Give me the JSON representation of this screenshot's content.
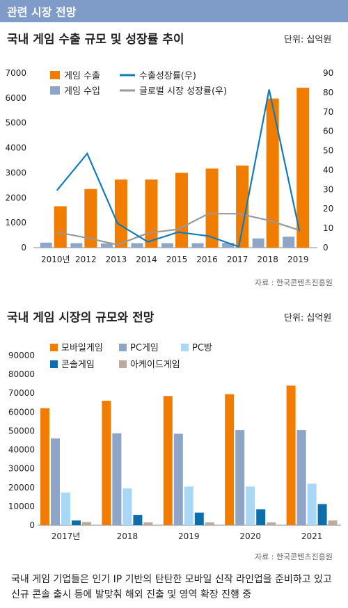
{
  "header": {
    "title": "관련 시장 전망"
  },
  "chart_data": [
    {
      "type": "bar",
      "title": "국내 게임 수출 규모 및 성장률 추이",
      "unit": "단위: 십억원",
      "source": "자료 : 한국콘텐츠진흥원",
      "categories": [
        "2010년",
        "2012",
        "2013",
        "2014",
        "2015",
        "2016",
        "2017",
        "2018",
        "2019"
      ],
      "ylim": [
        0,
        7000
      ],
      "yticks": [
        "7000",
        "6000",
        "5000",
        "4000",
        "3000",
        "2000",
        "1000",
        "0"
      ],
      "y2lim": [
        0,
        90
      ],
      "y2ticks": [
        "90",
        "80",
        "70",
        "60",
        "50",
        "40",
        "30",
        "20",
        "10",
        "0"
      ],
      "series": [
        {
          "name": "게임 수출",
          "kind": "bar",
          "axis": "left",
          "color": "#f07d00",
          "values": [
            1660,
            2350,
            2730,
            2730,
            3000,
            3170,
            3290,
            5980,
            6410
          ]
        },
        {
          "name": "게임 수입",
          "kind": "bar",
          "axis": "left",
          "color": "#8ea5c7",
          "values": [
            200,
            180,
            170,
            180,
            180,
            180,
            190,
            370,
            440
          ]
        },
        {
          "name": "수출성장률(우)",
          "kind": "line",
          "axis": "right",
          "color": "#0e7bbf",
          "values": [
            29.5,
            48.5,
            12.5,
            3.0,
            8.0,
            6.0,
            0.5,
            81.5,
            8.5
          ]
        },
        {
          "name": "글로벌 시장 성장률(우)",
          "kind": "line",
          "axis": "right",
          "color": "#999999",
          "values": [
            8.0,
            5.0,
            1.5,
            7.5,
            9.5,
            17.5,
            17.5,
            14.0,
            9.0
          ]
        }
      ],
      "legend_position": "top-left"
    },
    {
      "type": "bar",
      "title": "국내 게임 시장의 규모와 전망",
      "unit": "단위: 십억원",
      "source": "자료 : 한국콘텐츠진흥원",
      "categories": [
        "2017년",
        "2018",
        "2019",
        "2020",
        "2021"
      ],
      "ylim": [
        0,
        90000
      ],
      "yticks": [
        "90000",
        "80000",
        "70000",
        "60000",
        "50000",
        "40000",
        "30000",
        "20000",
        "10000",
        "0"
      ],
      "series": [
        {
          "name": "모바일게임",
          "color": "#f07d00",
          "values": [
            62000,
            66000,
            68500,
            69500,
            74000
          ]
        },
        {
          "name": "PC게임",
          "color": "#8ea5c7",
          "values": [
            46000,
            48700,
            48500,
            50500,
            50500
          ]
        },
        {
          "name": "PC방",
          "color": "#a9d8f7",
          "values": [
            17300,
            19500,
            20500,
            20500,
            22000
          ]
        },
        {
          "name": "콘솔게임",
          "color": "#0e6eaa",
          "values": [
            2500,
            5500,
            6700,
            8400,
            11200
          ]
        },
        {
          "name": "아케이드게임",
          "color": "#bdaa9e",
          "values": [
            1700,
            1500,
            1500,
            1500,
            2500
          ]
        }
      ],
      "legend_position": "top-left"
    }
  ],
  "footnote": "국내 게임 기업들은 인기 IP 기반의 탄탄한 모바일 신작 라인업을 준비하고 있고 신규 콘솔 출시 등에 발맞춰 해외 진출 및 영역 확장 진행 중"
}
